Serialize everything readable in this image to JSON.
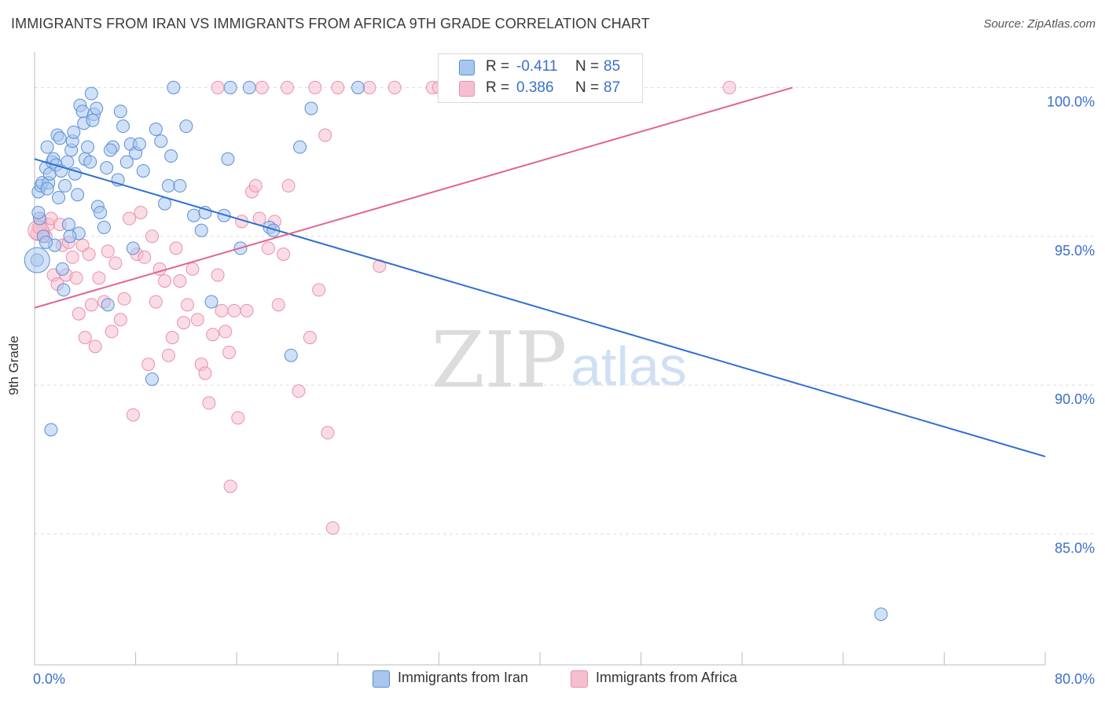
{
  "title": "IMMIGRANTS FROM IRAN VS IMMIGRANTS FROM AFRICA 9TH GRADE CORRELATION CHART",
  "source": "Source: ZipAtlas.com",
  "watermark": {
    "zip": "ZIP",
    "atlas": "atlas"
  },
  "colors": {
    "iran_fill": "#a9c6ee",
    "iran_stroke": "#5b8fd6",
    "iran_line": "#2e6fd0",
    "africa_fill": "#f6bfd0",
    "africa_stroke": "#e990ac",
    "africa_line": "#e0658d",
    "axis_text": "#3a6fcc",
    "grid": "#dddddd"
  },
  "legend_top": {
    "rows": [
      {
        "r_label": "R =",
        "r_value": "-0.411",
        "n_label": "N =",
        "n_value": "85"
      },
      {
        "r_label": "R =",
        "r_value": "0.386",
        "n_label": "N =",
        "n_value": "87"
      }
    ]
  },
  "legend_bottom": {
    "items": [
      "Immigrants from Iran",
      "Immigrants from Africa"
    ]
  },
  "chart_data": {
    "type": "scatter",
    "xlabel": "",
    "ylabel": "9th Grade",
    "xlim": [
      0,
      80
    ],
    "ylim": [
      80.6,
      101.2
    ],
    "x_tick_labels": [
      "0.0%",
      "80.0%"
    ],
    "y_ticks": [
      100,
      95,
      90,
      85
    ],
    "y_tick_labels": [
      "100.0%",
      "95.0%",
      "90.0%",
      "85.0%"
    ],
    "grid": true,
    "series": [
      {
        "name": "Immigrants from Iran",
        "trend": {
          "x": [
            0,
            80
          ],
          "y": [
            97.6,
            87.6
          ]
        },
        "points": [
          [
            0.3,
            96.5
          ],
          [
            0.4,
            95.6
          ],
          [
            0.5,
            96.7
          ],
          [
            0.6,
            96.8
          ],
          [
            0.7,
            95.0
          ],
          [
            0.9,
            97.3
          ],
          [
            1.0,
            98.0
          ],
          [
            1.1,
            96.8
          ],
          [
            1.2,
            97.1
          ],
          [
            1.4,
            97.5
          ],
          [
            1.5,
            97.6
          ],
          [
            1.7,
            97.4
          ],
          [
            1.8,
            98.4
          ],
          [
            1.9,
            96.3
          ],
          [
            2.0,
            98.3
          ],
          [
            2.1,
            97.2
          ],
          [
            2.2,
            93.9
          ],
          [
            2.4,
            96.7
          ],
          [
            2.6,
            97.5
          ],
          [
            2.7,
            95.4
          ],
          [
            2.9,
            97.9
          ],
          [
            3.0,
            98.2
          ],
          [
            3.2,
            97.1
          ],
          [
            3.4,
            96.4
          ],
          [
            3.6,
            99.4
          ],
          [
            3.8,
            99.2
          ],
          [
            3.9,
            98.8
          ],
          [
            4.0,
            97.6
          ],
          [
            4.2,
            98.0
          ],
          [
            4.4,
            97.5
          ],
          [
            4.5,
            99.8
          ],
          [
            4.7,
            99.1
          ],
          [
            4.9,
            99.3
          ],
          [
            5.0,
            96.0
          ],
          [
            5.2,
            95.8
          ],
          [
            5.5,
            95.3
          ],
          [
            5.8,
            92.7
          ],
          [
            6.2,
            98.0
          ],
          [
            6.6,
            96.9
          ],
          [
            6.8,
            99.2
          ],
          [
            7.0,
            98.7
          ],
          [
            7.3,
            97.5
          ],
          [
            7.6,
            98.1
          ],
          [
            7.8,
            94.6
          ],
          [
            8.0,
            97.8
          ],
          [
            8.3,
            98.1
          ],
          [
            8.6,
            97.2
          ],
          [
            9.3,
            90.2
          ],
          [
            9.6,
            98.6
          ],
          [
            10.0,
            98.2
          ],
          [
            10.3,
            96.1
          ],
          [
            10.6,
            96.7
          ],
          [
            10.8,
            97.7
          ],
          [
            11.0,
            100.0
          ],
          [
            11.5,
            96.7
          ],
          [
            12.0,
            98.7
          ],
          [
            12.6,
            95.7
          ],
          [
            13.2,
            95.2
          ],
          [
            13.5,
            95.8
          ],
          [
            14.0,
            92.8
          ],
          [
            15.0,
            95.7
          ],
          [
            15.3,
            97.6
          ],
          [
            15.5,
            100.0
          ],
          [
            16.3,
            94.6
          ],
          [
            17.0,
            100.0
          ],
          [
            18.6,
            95.3
          ],
          [
            18.9,
            95.2
          ],
          [
            20.3,
            91.0
          ],
          [
            21.0,
            98.0
          ],
          [
            21.9,
            99.3
          ],
          [
            25.6,
            100.0
          ],
          [
            1.3,
            88.5
          ],
          [
            2.3,
            93.2
          ],
          [
            3.5,
            95.1
          ],
          [
            4.6,
            98.9
          ],
          [
            1.6,
            94.7
          ],
          [
            2.8,
            95.0
          ],
          [
            0.9,
            94.8
          ],
          [
            6.0,
            97.9
          ],
          [
            0.2,
            94.2
          ],
          [
            67.0,
            82.3
          ],
          [
            3.1,
            98.5
          ],
          [
            5.7,
            97.3
          ],
          [
            0.3,
            95.8
          ],
          [
            1.0,
            96.6
          ]
        ]
      },
      {
        "name": "Immigrants from Africa",
        "trend": {
          "x": [
            0,
            60
          ],
          "y": [
            92.6,
            100.0
          ]
        },
        "points": [
          [
            0.2,
            95.1
          ],
          [
            0.3,
            95.3
          ],
          [
            0.5,
            95.5
          ],
          [
            0.7,
            95.1
          ],
          [
            0.9,
            95.0
          ],
          [
            1.1,
            95.4
          ],
          [
            1.3,
            95.6
          ],
          [
            1.5,
            93.7
          ],
          [
            1.8,
            93.4
          ],
          [
            2.0,
            95.4
          ],
          [
            2.2,
            94.7
          ],
          [
            2.5,
            93.7
          ],
          [
            2.7,
            94.8
          ],
          [
            3.0,
            94.3
          ],
          [
            3.3,
            93.6
          ],
          [
            3.5,
            92.4
          ],
          [
            3.8,
            94.7
          ],
          [
            4.0,
            91.6
          ],
          [
            4.3,
            94.4
          ],
          [
            4.5,
            92.7
          ],
          [
            4.8,
            91.3
          ],
          [
            5.1,
            93.6
          ],
          [
            5.5,
            92.8
          ],
          [
            5.8,
            94.5
          ],
          [
            6.1,
            91.8
          ],
          [
            6.4,
            94.1
          ],
          [
            6.8,
            92.2
          ],
          [
            7.1,
            92.9
          ],
          [
            7.5,
            95.6
          ],
          [
            7.8,
            89.0
          ],
          [
            8.1,
            94.4
          ],
          [
            8.4,
            95.8
          ],
          [
            8.7,
            94.3
          ],
          [
            9.0,
            90.7
          ],
          [
            9.3,
            95.0
          ],
          [
            9.6,
            92.8
          ],
          [
            9.9,
            93.9
          ],
          [
            10.3,
            93.5
          ],
          [
            10.6,
            91.0
          ],
          [
            10.9,
            91.6
          ],
          [
            11.2,
            94.6
          ],
          [
            11.5,
            93.5
          ],
          [
            11.8,
            92.1
          ],
          [
            12.1,
            92.7
          ],
          [
            12.5,
            93.9
          ],
          [
            12.9,
            92.2
          ],
          [
            13.2,
            90.7
          ],
          [
            13.5,
            90.4
          ],
          [
            13.8,
            89.4
          ],
          [
            14.1,
            91.7
          ],
          [
            14.5,
            93.7
          ],
          [
            14.8,
            92.5
          ],
          [
            15.1,
            91.8
          ],
          [
            15.4,
            91.1
          ],
          [
            15.8,
            92.5
          ],
          [
            16.1,
            88.9
          ],
          [
            16.4,
            95.5
          ],
          [
            16.8,
            92.5
          ],
          [
            17.2,
            96.5
          ],
          [
            17.5,
            96.7
          ],
          [
            17.8,
            95.6
          ],
          [
            18.5,
            94.6
          ],
          [
            19.0,
            95.5
          ],
          [
            19.3,
            92.7
          ],
          [
            19.7,
            94.4
          ],
          [
            20.1,
            96.7
          ],
          [
            20.9,
            89.8
          ],
          [
            21.8,
            91.6
          ],
          [
            22.5,
            93.2
          ],
          [
            23.0,
            98.4
          ],
          [
            23.2,
            88.4
          ],
          [
            23.6,
            85.2
          ],
          [
            27.3,
            94.0
          ],
          [
            28.5,
            100.0
          ],
          [
            31.5,
            100.0
          ],
          [
            32.0,
            100.0
          ],
          [
            34.0,
            100.0
          ],
          [
            38.0,
            100.0
          ],
          [
            55.0,
            100.0
          ],
          [
            18.0,
            100.0
          ],
          [
            20.0,
            100.0
          ],
          [
            24.0,
            100.0
          ],
          [
            26.5,
            100.0
          ],
          [
            15.5,
            86.6
          ],
          [
            14.5,
            100.0
          ],
          [
            22.2,
            100.0
          ],
          [
            0.4,
            95.3
          ]
        ]
      }
    ]
  }
}
